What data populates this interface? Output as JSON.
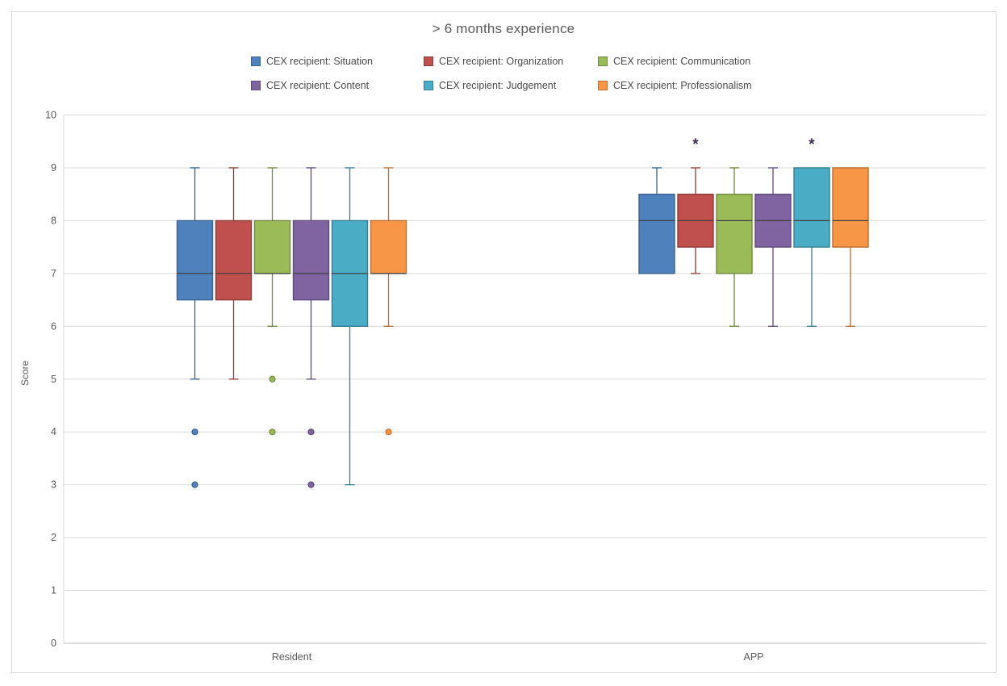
{
  "chart_data": {
    "type": "boxplot",
    "title": "> 6 months experience",
    "ylabel": "Score",
    "ylim": [
      0,
      10
    ],
    "ytick_step": 1,
    "grid": true,
    "legend_position": "top",
    "groups": [
      "Resident",
      "APP"
    ],
    "series": [
      {
        "name": "CEX recipient: Situation",
        "fill": "#4F81BD",
        "stroke": "#38618E",
        "boxes": [
          {
            "group": "Resident",
            "min": 5,
            "q1": 6.5,
            "median": 7,
            "q3": 8,
            "max": 9,
            "outliers": [
              4,
              3
            ]
          },
          {
            "group": "APP",
            "min": 7,
            "q1": 7,
            "median": 8,
            "q3": 8.5,
            "max": 9,
            "outliers": []
          }
        ]
      },
      {
        "name": "CEX recipient: Organization",
        "fill": "#C0504D",
        "stroke": "#8E3A38",
        "boxes": [
          {
            "group": "Resident",
            "min": 5,
            "q1": 6.5,
            "median": 7,
            "q3": 8,
            "max": 9,
            "outliers": []
          },
          {
            "group": "APP",
            "min": 7,
            "q1": 7.5,
            "median": 8,
            "q3": 8.5,
            "max": 9,
            "outliers": []
          }
        ]
      },
      {
        "name": "CEX recipient: Communication",
        "fill": "#9BBB59",
        "stroke": "#718A40",
        "boxes": [
          {
            "group": "Resident",
            "min": 6,
            "q1": 7,
            "median": 7,
            "q3": 8,
            "max": 9,
            "outliers": [
              5,
              4
            ]
          },
          {
            "group": "APP",
            "min": 6,
            "q1": 7,
            "median": 8,
            "q3": 8.5,
            "max": 9,
            "outliers": []
          }
        ]
      },
      {
        "name": "CEX recipient: Content",
        "fill": "#8064A2",
        "stroke": "#5E4A78",
        "boxes": [
          {
            "group": "Resident",
            "min": 5,
            "q1": 6.5,
            "median": 7,
            "q3": 8,
            "max": 9,
            "outliers": [
              4,
              3
            ]
          },
          {
            "group": "APP",
            "min": 6,
            "q1": 7.5,
            "median": 8,
            "q3": 8.5,
            "max": 9,
            "outliers": []
          }
        ]
      },
      {
        "name": "CEX recipient: Judgement",
        "fill": "#4BACC6",
        "stroke": "#357E92",
        "boxes": [
          {
            "group": "Resident",
            "min": 3,
            "q1": 6,
            "median": 7,
            "q3": 8,
            "max": 9,
            "outliers": []
          },
          {
            "group": "APP",
            "min": 6,
            "q1": 7.5,
            "median": 8,
            "q3": 9,
            "max": 9,
            "outliers": []
          }
        ]
      },
      {
        "name": "CEX recipient: Professionalism",
        "fill": "#F79646",
        "stroke": "#BC6D2F",
        "boxes": [
          {
            "group": "Resident",
            "min": 6,
            "q1": 7,
            "median": 7,
            "q3": 8,
            "max": 9,
            "outliers": [
              4
            ]
          },
          {
            "group": "APP",
            "min": 6,
            "q1": 7.5,
            "median": 8,
            "q3": 9,
            "max": 9,
            "outliers": []
          }
        ]
      }
    ],
    "annotations": [
      {
        "text": "*",
        "group_index": 1,
        "series_index": 1,
        "y": 9.5
      },
      {
        "text": "*",
        "group_index": 1,
        "series_index": 4,
        "y": 9.5
      }
    ],
    "colors": {
      "grid": "#d9d9d9",
      "axis": "#bfbfbf",
      "plot_border": "#d9d9d9",
      "median_line": "#3f3f3f",
      "tick_text": "#595959",
      "annotation": "#403152"
    }
  }
}
